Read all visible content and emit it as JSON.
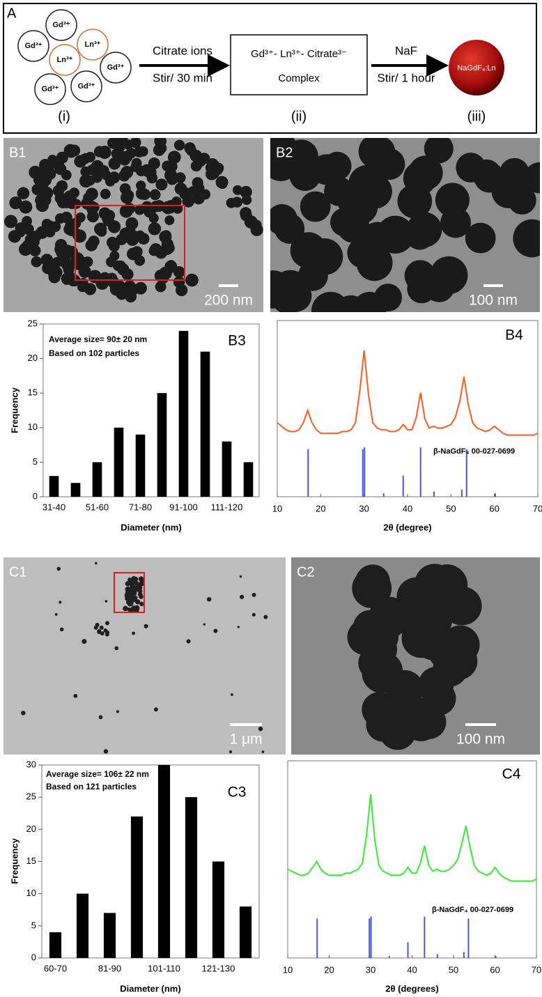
{
  "scheme": {
    "label": "A",
    "ions": [
      "Gd³⁺",
      "Gd³⁺",
      "Ln³⁺",
      "Ln³⁺",
      "Gd³⁺",
      "Gd³⁺",
      "Gd³⁺"
    ],
    "arrows": [
      {
        "top": "Citrate ions",
        "bottom": "Stir/ 30 min"
      },
      {
        "top": "NaF",
        "bottom": "Stir/ 1 hour"
      }
    ],
    "complex": [
      "Gd³⁺- Ln³⁺- Citrate³⁻",
      "Complex"
    ],
    "product": "NaGdF₄:Ln",
    "steps": [
      "(i)",
      "(ii)",
      "(iii)"
    ]
  },
  "micrographs": [
    {
      "label": "B1",
      "scale_bar": "200 nm"
    },
    {
      "label": "B2",
      "scale_bar": "100 nm"
    },
    {
      "label": "C1",
      "scale_bar": "1 μm"
    },
    {
      "label": "C2",
      "scale_bar": "100 nm"
    }
  ],
  "chart_data": [
    {
      "type": "bar",
      "panel_label": "B3",
      "annotations": [
        "Average size= 90± 20 nm",
        "Based on 102 particles"
      ],
      "categories": [
        "31-40",
        null,
        "51-60",
        null,
        "71-80",
        null,
        "91-100",
        null,
        "111-120",
        null
      ],
      "values": [
        3,
        2,
        5,
        10,
        9,
        15,
        24,
        21,
        8,
        5
      ],
      "color": "#000000",
      "ylim": [
        0,
        25
      ],
      "yticks": [
        0,
        5,
        10,
        15,
        20,
        25
      ],
      "xlabel": "Diameter (nm)",
      "ylabel": "Frequency"
    },
    {
      "type": "line",
      "panel_label": "B4",
      "color": "#ff5a1f",
      "x": [
        10,
        11,
        12,
        13,
        14,
        15,
        16,
        17,
        18,
        19,
        20,
        21,
        22,
        23,
        24,
        25,
        26,
        27,
        28,
        29,
        30,
        31,
        32,
        33,
        34,
        35,
        36,
        37,
        38,
        39,
        40,
        41,
        42,
        43,
        44,
        45,
        46,
        47,
        48,
        49,
        50,
        51,
        52,
        53,
        54,
        55,
        56,
        57,
        58,
        59,
        60,
        61,
        62,
        63,
        64,
        65,
        66,
        67,
        68,
        69,
        70
      ],
      "values": [
        42,
        40,
        38,
        37,
        37,
        38,
        42,
        49,
        42,
        38,
        36,
        36,
        36,
        36,
        36,
        37,
        37,
        38,
        42,
        60,
        83,
        58,
        42,
        39,
        38,
        38,
        37,
        37,
        38,
        41,
        38,
        38,
        45,
        59,
        44,
        39,
        40,
        39,
        39,
        40,
        41,
        45,
        54,
        68,
        52,
        42,
        39,
        38,
        37,
        38,
        40,
        38,
        36,
        35,
        35,
        35,
        35,
        35,
        35,
        35,
        36
      ],
      "references": {
        "label": "β-NaGdF₄ 00-027-0699",
        "color": "#4a55d6",
        "x": [
          17.1,
          29.7,
          30.1,
          34.5,
          39.0,
          43.0,
          46.1,
          52.5,
          53.6,
          60.2
        ],
        "values": [
          27,
          27,
          28,
          2,
          12,
          28,
          3,
          4,
          27,
          2
        ]
      },
      "xlim": [
        10,
        70
      ],
      "xticks": [
        10,
        20,
        30,
        40,
        50,
        60,
        70
      ],
      "ylim": [
        0,
        100
      ],
      "xlabel": "2θ (degree)"
    },
    {
      "type": "bar",
      "panel_label": "C3",
      "annotations": [
        "Average size= 106± 22 nm",
        "Based on 121 particles"
      ],
      "categories": [
        "60-70",
        null,
        "81-90",
        null,
        "101-110",
        null,
        "121-130",
        null
      ],
      "values": [
        4,
        10,
        7,
        22,
        30,
        25,
        15,
        8
      ],
      "color": "#000000",
      "ylim": [
        0,
        30
      ],
      "yticks": [
        0,
        5,
        10,
        15,
        20,
        25,
        30
      ],
      "xlabel": "Diameter (nm)",
      "ylabel": "Frequency"
    },
    {
      "type": "line",
      "panel_label": "C4",
      "color": "#33ee33",
      "x": [
        10,
        11,
        12,
        13,
        14,
        15,
        16,
        17,
        18,
        19,
        20,
        21,
        22,
        23,
        24,
        25,
        26,
        27,
        28,
        29,
        30,
        31,
        32,
        33,
        34,
        35,
        36,
        37,
        38,
        39,
        40,
        41,
        42,
        43,
        44,
        45,
        46,
        47,
        48,
        49,
        50,
        51,
        52,
        53,
        54,
        55,
        56,
        57,
        58,
        59,
        60,
        61,
        62,
        63,
        64,
        65,
        66,
        67,
        68,
        69,
        70
      ],
      "values": [
        45,
        44,
        43,
        42,
        42,
        43,
        46,
        49,
        45,
        43,
        42,
        42,
        42,
        42,
        43,
        43,
        44,
        45,
        48,
        62,
        83,
        60,
        47,
        44,
        43,
        42,
        42,
        42,
        43,
        46,
        43,
        43,
        48,
        57,
        47,
        44,
        45,
        44,
        44,
        45,
        47,
        50,
        58,
        67,
        56,
        47,
        44,
        43,
        42,
        43,
        46,
        43,
        41,
        40,
        39,
        39,
        39,
        39,
        39,
        39,
        40
      ],
      "references": {
        "label": "β-NaGdF₄ 00-027-0699",
        "color": "#4a55d6",
        "x": [
          17.1,
          29.7,
          30.1,
          34.5,
          39.0,
          43.0,
          46.1,
          52.5,
          53.6,
          60.2
        ],
        "values": [
          20,
          20,
          21,
          1,
          8,
          21,
          2,
          3,
          20,
          1
        ]
      },
      "xlim": [
        10,
        70
      ],
      "xticks": [
        10,
        20,
        30,
        40,
        50,
        60,
        70
      ],
      "ylim": [
        0,
        100
      ],
      "xlabel": "2θ (degrees)"
    }
  ]
}
